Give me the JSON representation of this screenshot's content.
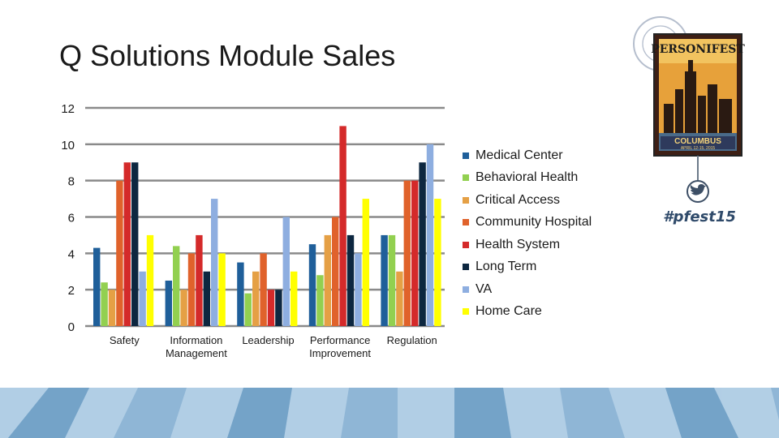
{
  "slide": {
    "title": "Q Solutions Module Sales"
  },
  "chart_data": {
    "type": "bar",
    "categories": [
      [
        "Safety"
      ],
      [
        "Information",
        "Management"
      ],
      [
        "Leadership"
      ],
      [
        "Performance",
        "Improvement"
      ],
      [
        "Regulation"
      ]
    ],
    "ylim": [
      0,
      12
    ],
    "yticks": [
      0,
      2,
      4,
      6,
      8,
      10,
      12
    ],
    "grid": true,
    "legend_position": "right",
    "series": [
      {
        "name": "Medical Center",
        "color": "#1f5f9a",
        "values": [
          4.3,
          2.5,
          3.5,
          4.5,
          5.0
        ]
      },
      {
        "name": "Behavioral Health",
        "color": "#92d050",
        "values": [
          2.4,
          4.4,
          1.8,
          2.8,
          5.0
        ]
      },
      {
        "name": "Critical Access",
        "color": "#e5a045",
        "values": [
          2.0,
          2.0,
          3.0,
          5.0,
          3.0
        ]
      },
      {
        "name": "Community Hospital",
        "color": "#e0622b",
        "values": [
          8.0,
          4.0,
          4.0,
          6.0,
          8.0
        ]
      },
      {
        "name": "Health System",
        "color": "#d42a2a",
        "values": [
          9.0,
          5.0,
          2.0,
          11.0,
          8.0
        ]
      },
      {
        "name": "Long Term",
        "color": "#0d2740",
        "values": [
          9.0,
          3.0,
          2.0,
          5.0,
          9.0
        ]
      },
      {
        "name": "VA",
        "color": "#8eaee0",
        "values": [
          3.0,
          7.0,
          6.0,
          4.0,
          10.0
        ]
      },
      {
        "name": "Home Care",
        "color": "#ffff00",
        "values": [
          5.0,
          4.0,
          3.0,
          7.0,
          7.0
        ]
      }
    ]
  },
  "logo": {
    "brand": "PERSONIFEST",
    "city": "COLUMBUS",
    "dates": "APRIL 12-15, 2015",
    "hashtag": "#pfest15",
    "postmark": "COLUMBUS OHIO APR 12-15"
  }
}
